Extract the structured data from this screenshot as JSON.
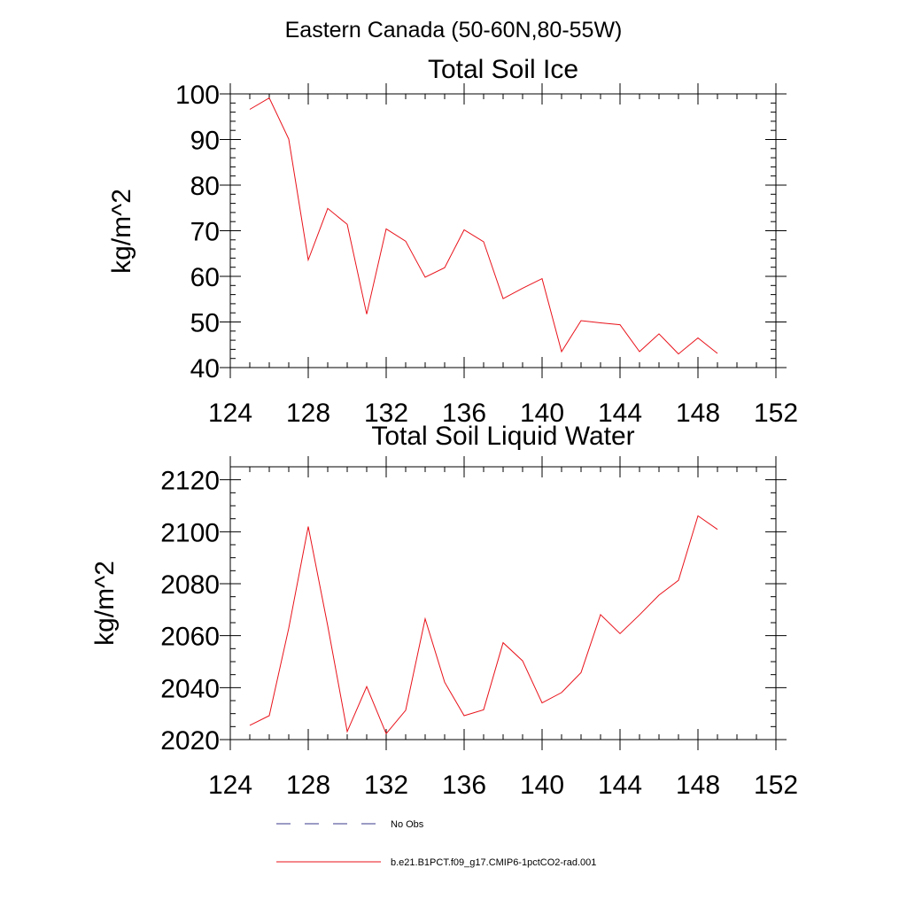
{
  "figure": {
    "title": "Eastern Canada (50-60N,80-55W)"
  },
  "legend": {
    "items": [
      {
        "label": "No Obs",
        "color": "#3a3a8c",
        "dash": "dashed"
      },
      {
        "label": "b.e21.B1PCT.f09_g17.CMIP6-1pctCO2-rad.001",
        "color": "#e8121a",
        "dash": "solid"
      }
    ]
  },
  "chart_data": [
    {
      "type": "line",
      "title": "Total Soil Ice",
      "xlabel": "",
      "ylabel": "kg/m^2",
      "xlim": [
        124,
        152
      ],
      "ylim": [
        40,
        100
      ],
      "xticks": [
        124,
        128,
        132,
        136,
        140,
        144,
        148,
        152
      ],
      "yticks": [
        40,
        50,
        60,
        70,
        80,
        90,
        100
      ],
      "x_minor_step": 1,
      "y_minor_step": 2,
      "grid": false,
      "series": [
        {
          "name": "b.e21.B1PCT.f09_g17.CMIP6-1pctCO2-rad.001",
          "color": "#e8121a",
          "x": [
            125,
            126,
            127,
            128,
            129,
            130,
            131,
            132,
            133,
            134,
            135,
            136,
            137,
            138,
            139,
            140,
            141,
            142,
            143,
            144,
            145,
            146,
            147,
            148,
            149
          ],
          "y": [
            96.6,
            99.1,
            90.1,
            63.6,
            74.9,
            71.4,
            51.7,
            70.4,
            67.7,
            59.8,
            61.9,
            70.2,
            67.6,
            55.1,
            57.4,
            59.5,
            43.5,
            50.3,
            49.8,
            49.4,
            43.5,
            47.4,
            43.0,
            46.5,
            43.1
          ]
        }
      ]
    },
    {
      "type": "line",
      "title": "Total Soil Liquid Water",
      "xlabel": "",
      "ylabel": "kg/m^2",
      "xlim": [
        124,
        152
      ],
      "ylim": [
        2020,
        2125
      ],
      "xticks": [
        124,
        128,
        132,
        136,
        140,
        144,
        148,
        152
      ],
      "yticks": [
        2020,
        2040,
        2060,
        2080,
        2100,
        2120
      ],
      "x_minor_step": 1,
      "y_minor_step": 5,
      "grid": false,
      "series": [
        {
          "name": "b.e21.B1PCT.f09_g17.CMIP6-1pctCO2-rad.001",
          "color": "#e8121a",
          "x": [
            125,
            126,
            127,
            128,
            129,
            130,
            131,
            132,
            133,
            134,
            135,
            136,
            137,
            138,
            139,
            140,
            141,
            142,
            143,
            144,
            145,
            146,
            147,
            148,
            149
          ],
          "y": [
            2025.5,
            2029.2,
            2062.9,
            2102.0,
            2063.8,
            2023.1,
            2040.4,
            2022.3,
            2031.3,
            2066.5,
            2042.1,
            2029.2,
            2031.5,
            2057.3,
            2050.3,
            2034.1,
            2038.1,
            2045.8,
            2068.1,
            2060.8,
            2068.0,
            2075.6,
            2081.3,
            2106.1,
            2100.9
          ]
        }
      ]
    }
  ]
}
